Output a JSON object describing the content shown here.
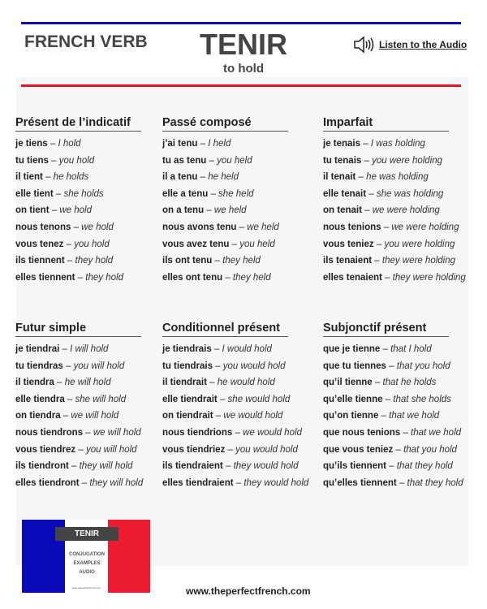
{
  "header": {
    "label": "FRENCH VERB",
    "verb": "TENIR",
    "translation": "to hold",
    "audio_link": "Listen to the Audio"
  },
  "tenses": [
    {
      "title": "Présent de l’indicatif",
      "rows": [
        [
          "je tiens",
          "I hold"
        ],
        [
          "tu tiens",
          "you hold"
        ],
        [
          "il tient",
          "he holds"
        ],
        [
          "elle tient",
          "she holds"
        ],
        [
          "on tient",
          "we hold"
        ],
        [
          "nous tenons",
          "we hold"
        ],
        [
          "vous tenez",
          "you hold"
        ],
        [
          "ils tiennent",
          "they hold"
        ],
        [
          "elles tiennent",
          "they hold"
        ]
      ]
    },
    {
      "title": "Passé composé",
      "rows": [
        [
          "j’ai tenu",
          "I held"
        ],
        [
          "tu as tenu",
          "you held"
        ],
        [
          "il a tenu",
          "he held"
        ],
        [
          "elle a tenu",
          "she held"
        ],
        [
          "on a tenu",
          "we held"
        ],
        [
          "nous avons tenu",
          "we held"
        ],
        [
          "vous avez tenu",
          "you held"
        ],
        [
          "ils ont tenu",
          "they held"
        ],
        [
          "elles ont tenu",
          "they held"
        ]
      ]
    },
    {
      "title": "Imparfait",
      "rows": [
        [
          "je tenais",
          "I was holding"
        ],
        [
          "tu tenais",
          "you were holding"
        ],
        [
          "il tenait",
          "he was holding"
        ],
        [
          "elle tenait",
          "she was holding"
        ],
        [
          "on tenait",
          "we were holding"
        ],
        [
          "nous tenions",
          "we were holding"
        ],
        [
          "vous teniez",
          "you were holding"
        ],
        [
          "ils tenaient",
          "they were holding"
        ],
        [
          "elles tenaient",
          "they were holding"
        ]
      ]
    },
    {
      "title": "Futur simple",
      "rows": [
        [
          "je tiendrai",
          "I will hold"
        ],
        [
          "tu tiendras",
          "you will hold"
        ],
        [
          "il tiendra",
          "he will hold"
        ],
        [
          "elle tiendra",
          "she will hold"
        ],
        [
          "on tiendra",
          "we will hold"
        ],
        [
          "nous tiendrons",
          "we will hold"
        ],
        [
          "vous tiendrez",
          "you will hold"
        ],
        [
          "ils tiendront",
          "they will hold"
        ],
        [
          "elles tiendront",
          "they will hold"
        ]
      ]
    },
    {
      "title": "Conditionnel présent",
      "rows": [
        [
          "je tiendrais",
          "I would hold"
        ],
        [
          "tu tiendrais",
          "you would hold"
        ],
        [
          "il tiendrait",
          "he would hold"
        ],
        [
          "elle tiendrait",
          "she would hold"
        ],
        [
          "on tiendrait",
          "we would hold"
        ],
        [
          "nous tiendrions",
          "we would hold"
        ],
        [
          "vous tiendriez",
          "you would hold"
        ],
        [
          "ils tiendraient",
          "they would hold"
        ],
        [
          "elles tiendraient",
          "they would hold"
        ]
      ]
    },
    {
      "title": "Subjonctif présent",
      "rows": [
        [
          "que je tienne",
          "that I hold"
        ],
        [
          "que tu tiennes",
          "that you hold"
        ],
        [
          "qu’il tienne",
          "that he holds"
        ],
        [
          "qu’elle tienne",
          "that she holds"
        ],
        [
          "qu’on tienne",
          "that we hold"
        ],
        [
          "que nous tenions",
          "that we hold"
        ],
        [
          "que vous teniez",
          "that you hold"
        ],
        [
          "qu’ils tiennent",
          "that they hold"
        ],
        [
          "qu’elles tiennent",
          "that they hold"
        ]
      ]
    }
  ],
  "logo": {
    "verb": "TENIR",
    "lines": [
      "CONJUGATION",
      "EXAMPLES",
      "AUDIO"
    ],
    "url": "www.theperfectfrench.com"
  },
  "footer": {
    "site": "www.theperfectfrench.com"
  },
  "colors": {
    "blue": "#0a0ab0",
    "red": "#e8141c",
    "panel": "#f4f6f7"
  }
}
